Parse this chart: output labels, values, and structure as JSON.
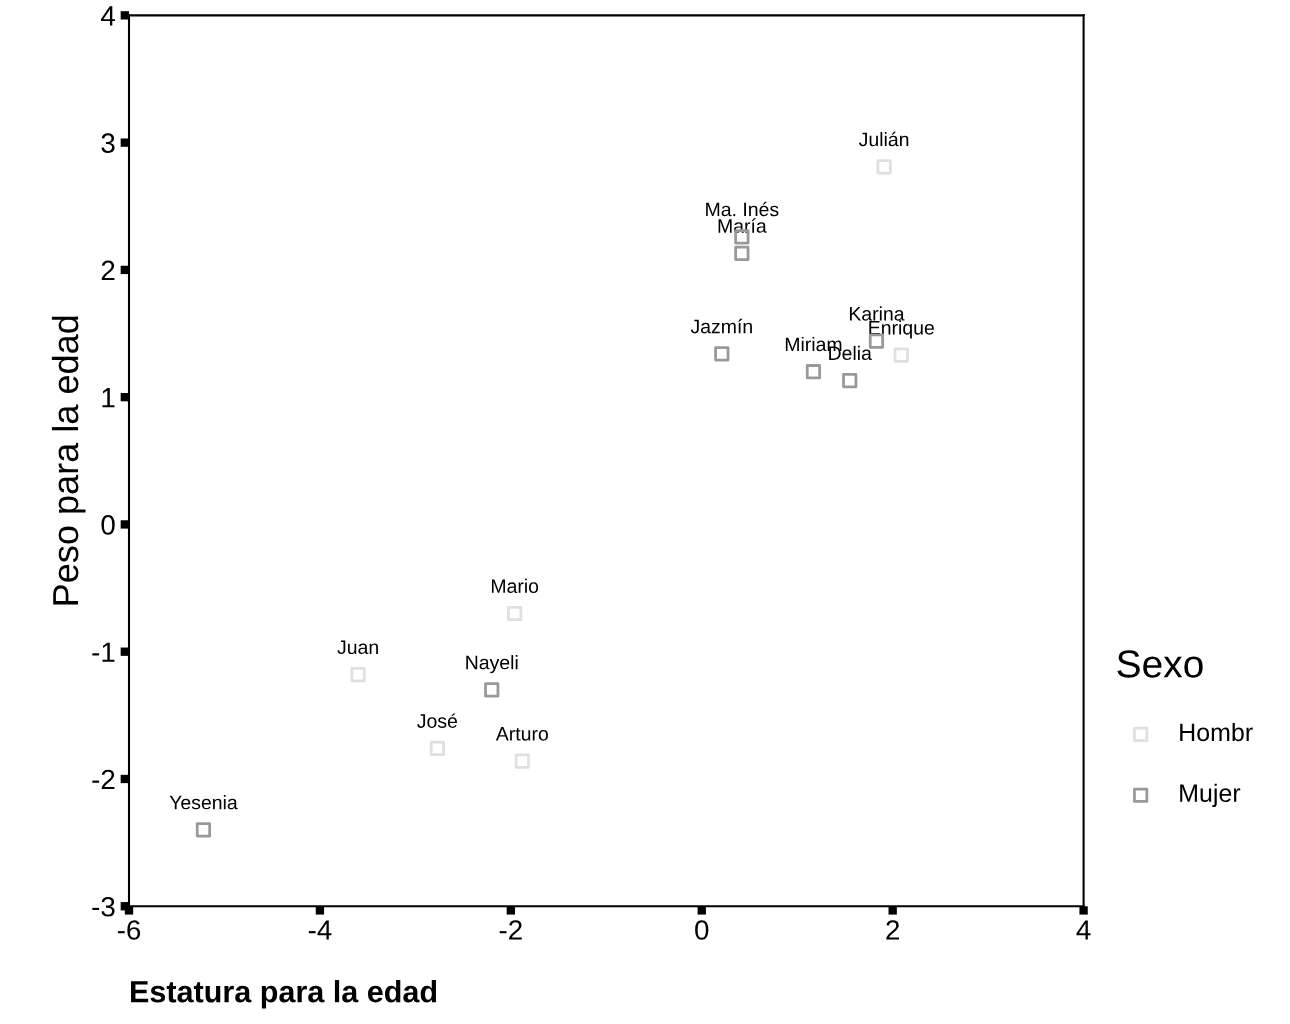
{
  "chart_data": {
    "type": "scatter",
    "xlabel": "Estatura para la edad",
    "ylabel": "Peso para la edad",
    "legend_title": "Sexo",
    "legend": "right",
    "marker": "square",
    "grid": false,
    "xlim": [
      -6,
      4
    ],
    "xticks": [
      -6,
      -4,
      -2,
      0,
      2,
      4
    ],
    "ylim": [
      -3,
      4
    ],
    "yticks": [
      -3,
      -2,
      -1,
      0,
      1,
      2,
      3,
      4
    ],
    "series": [
      {
        "name": "Hombr",
        "color": "#e0e0e0",
        "x": [
          1.91,
          2.09,
          -1.96,
          -3.6,
          -2.77,
          -1.88
        ],
        "values": [
          2.81,
          1.33,
          -0.7,
          -1.18,
          -1.76,
          -1.86
        ]
      },
      {
        "name": "Mujer",
        "color": "#999999",
        "x": [
          0.42,
          0.42,
          0.21,
          1.17,
          1.55,
          1.83,
          -2.2,
          -5.22
        ],
        "values": [
          2.26,
          2.13,
          1.34,
          1.2,
          1.13,
          1.44,
          -1.3,
          -2.4
        ]
      }
    ],
    "annotations": [
      {
        "text": "Julián",
        "x": 1.91,
        "y": 2.81
      },
      {
        "text": "Enrique",
        "x": 2.09,
        "y": 1.33
      },
      {
        "text": "Mario",
        "x": -1.96,
        "y": -0.7
      },
      {
        "text": "Juan",
        "x": -3.6,
        "y": -1.18
      },
      {
        "text": "José",
        "x": -2.77,
        "y": -1.76
      },
      {
        "text": "Arturo",
        "x": -1.88,
        "y": -1.86
      },
      {
        "text": "Ma. Inés",
        "x": 0.42,
        "y": 2.26
      },
      {
        "text": "María",
        "x": 0.42,
        "y": 2.13
      },
      {
        "text": "Jazmín",
        "x": 0.21,
        "y": 1.34
      },
      {
        "text": "Miriam",
        "x": 1.17,
        "y": 1.2
      },
      {
        "text": "Delia",
        "x": 1.55,
        "y": 1.13
      },
      {
        "text": "Karina",
        "x": 1.83,
        "y": 1.44
      },
      {
        "text": "Nayeli",
        "x": -2.2,
        "y": -1.3
      },
      {
        "text": "Yesenia",
        "x": -5.22,
        "y": -2.4
      }
    ]
  }
}
